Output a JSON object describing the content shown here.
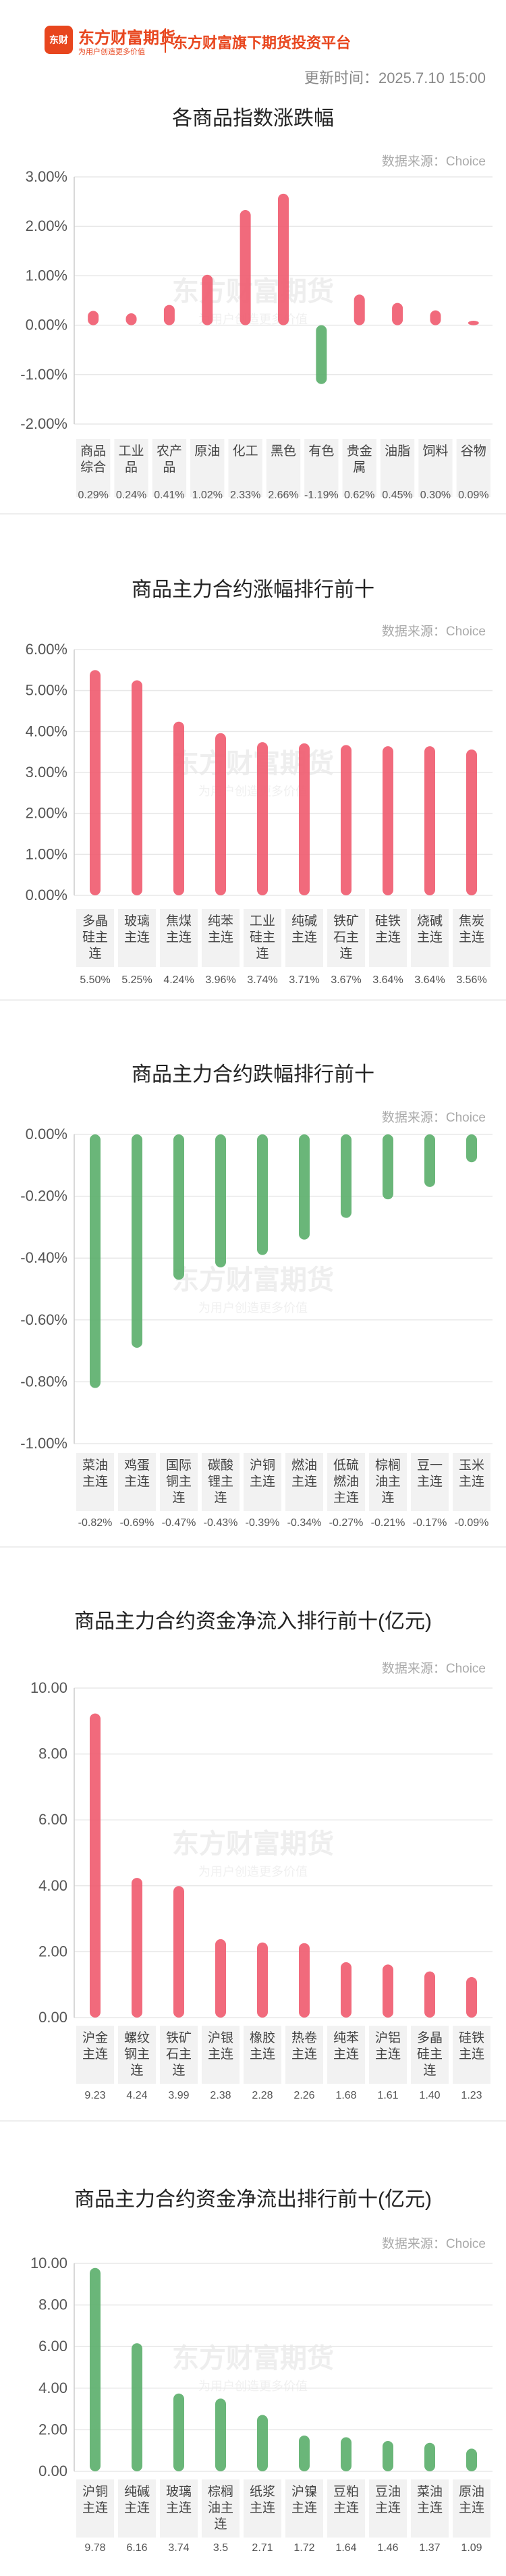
{
  "header": {
    "logo_badge": "东财",
    "brand": "东方财富期货",
    "slogan": "为用户创造更多价值",
    "platform": "东方财富旗下期货投资平台",
    "update_time": "更新时间：2025.7.10 15:00"
  },
  "watermark": {
    "brand": "东方财富期货",
    "slogan": "为用户创造更多价值"
  },
  "colors": {
    "positive": "#f05a6e",
    "negative": "#5aae6a",
    "grid": "#e8e8e8",
    "label_bg": "#f2f2f2"
  },
  "chart_data": [
    {
      "type": "bar",
      "title": "各商品指数涨跌幅",
      "source": "数据来源：Choice",
      "categories": [
        "商品综合",
        "工业品",
        "农产品",
        "原油",
        "化工",
        "黑色",
        "有色",
        "贵金属",
        "油脂",
        "饲料",
        "谷物"
      ],
      "values": [
        0.29,
        0.24,
        0.41,
        1.02,
        2.33,
        2.66,
        -1.19,
        0.62,
        0.45,
        0.3,
        0.09
      ],
      "value_labels": [
        "0.29%",
        "0.24%",
        "0.41%",
        "1.02%",
        "2.33%",
        "2.66%",
        "-1.19%",
        "0.62%",
        "0.45%",
        "0.30%",
        "0.09%"
      ],
      "yticks": [
        "3.00%",
        "2.00%",
        "1.00%",
        "0.00%",
        "-1.00%",
        "-2.00%"
      ],
      "ylim": [
        -2,
        3
      ],
      "grid": true
    },
    {
      "type": "bar",
      "title": "商品主力合约涨幅排行前十",
      "source": "数据来源：Choice",
      "categories": [
        "多晶硅主连",
        "玻璃主连",
        "焦煤主连",
        "纯苯主连",
        "工业硅主连",
        "纯碱主连",
        "铁矿石主连",
        "硅铁主连",
        "烧碱主连",
        "焦炭主连"
      ],
      "values": [
        5.5,
        5.25,
        4.24,
        3.96,
        3.74,
        3.71,
        3.67,
        3.64,
        3.64,
        3.56
      ],
      "value_labels": [
        "5.50%",
        "5.25%",
        "4.24%",
        "3.96%",
        "3.74%",
        "3.71%",
        "3.67%",
        "3.64%",
        "3.64%",
        "3.56%"
      ],
      "yticks": [
        "6.00%",
        "5.00%",
        "4.00%",
        "3.00%",
        "2.00%",
        "1.00%",
        "0.00%"
      ],
      "ylim": [
        0,
        6
      ],
      "grid": true
    },
    {
      "type": "bar",
      "title": "商品主力合约跌幅排行前十",
      "source": "数据来源：Choice",
      "categories": [
        "菜油主连",
        "鸡蛋主连",
        "国际铜主连",
        "碳酸锂主连",
        "沪铜主连",
        "燃油主连",
        "低硫燃油主连",
        "棕榈油主连",
        "豆一主连",
        "玉米主连"
      ],
      "values": [
        -0.82,
        -0.69,
        -0.47,
        -0.43,
        -0.39,
        -0.34,
        -0.27,
        -0.21,
        -0.17,
        -0.09
      ],
      "value_labels": [
        "-0.82%",
        "-0.69%",
        "-0.47%",
        "-0.43%",
        "-0.39%",
        "-0.34%",
        "-0.27%",
        "-0.21%",
        "-0.17%",
        "-0.09%"
      ],
      "yticks": [
        "0.00%",
        "-0.20%",
        "-0.40%",
        "-0.60%",
        "-0.80%",
        "-1.00%"
      ],
      "ylim": [
        -1,
        0
      ],
      "grid": true
    },
    {
      "type": "bar",
      "title": "商品主力合约资金净流入排行前十(亿元)",
      "source": "数据来源：Choice",
      "categories": [
        "沪金主连",
        "螺纹钢主连",
        "铁矿石主连",
        "沪银主连",
        "橡胶主连",
        "热卷主连",
        "纯苯主连",
        "沪铝主连",
        "多晶硅主连",
        "硅铁主连"
      ],
      "values": [
        9.23,
        4.24,
        3.99,
        2.38,
        2.28,
        2.26,
        1.68,
        1.61,
        1.4,
        1.23
      ],
      "value_labels": [
        "9.23",
        "4.24",
        "3.99",
        "2.38",
        "2.28",
        "2.26",
        "1.68",
        "1.61",
        "1.40",
        "1.23"
      ],
      "yticks": [
        "10.00",
        "8.00",
        "6.00",
        "4.00",
        "2.00",
        "0.00"
      ],
      "ylim": [
        0,
        10
      ],
      "grid": true
    },
    {
      "type": "bar",
      "title": "商品主力合约资金净流出排行前十(亿元)",
      "source": "数据来源：Choice",
      "categories": [
        "沪铜主连",
        "纯碱主连",
        "玻璃主连",
        "棕榈油主连",
        "纸浆主连",
        "沪镍主连",
        "豆粕主连",
        "豆油主连",
        "菜油主连",
        "原油主连"
      ],
      "values": [
        9.78,
        6.16,
        3.74,
        3.5,
        2.71,
        1.72,
        1.64,
        1.46,
        1.37,
        1.09
      ],
      "value_labels": [
        "9.78",
        "6.16",
        "3.74",
        "3.5",
        "2.71",
        "1.72",
        "1.64",
        "1.46",
        "1.37",
        "1.09"
      ],
      "yticks": [
        "10.00",
        "8.00",
        "6.00",
        "4.00",
        "2.00",
        "0.00"
      ],
      "ylim": [
        0,
        10
      ],
      "grid": true,
      "color": "negative"
    }
  ]
}
